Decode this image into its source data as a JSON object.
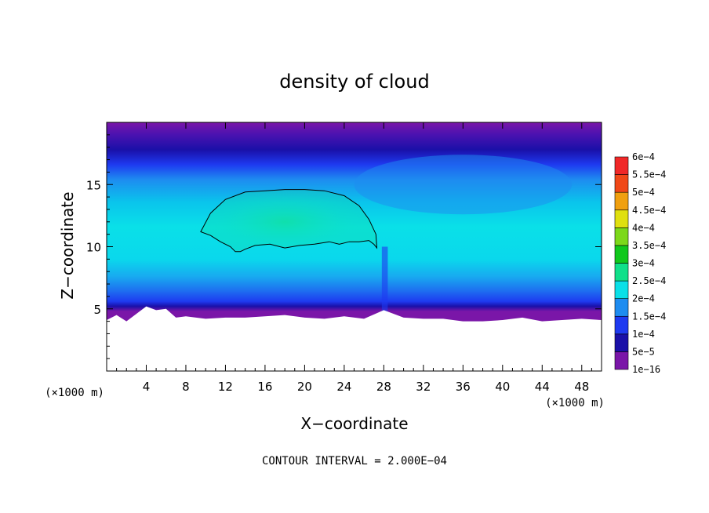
{
  "chart_data": {
    "type": "heatmap",
    "title": "density of cloud",
    "xlabel": "X−coordinate",
    "ylabel": "Z−coordinate",
    "x_unit_label": "(×1000 m)",
    "y_unit_label": "(×1000 m)",
    "footer": "CONTOUR INTERVAL = 2.000E−04",
    "xlim": [
      0,
      50
    ],
    "ylim": [
      0,
      20
    ],
    "x_ticks": [
      4,
      8,
      12,
      16,
      20,
      24,
      28,
      32,
      36,
      40,
      44,
      48
    ],
    "y_ticks": [
      5,
      10,
      15
    ],
    "legend_position": "right",
    "color_levels": [
      {
        "label": "1e−16",
        "color": "#7a16a8"
      },
      {
        "label": "5e−5",
        "color": "#1a10a8"
      },
      {
        "label": "1e−4",
        "color": "#1e3af0"
      },
      {
        "label": "1.5e−4",
        "color": "#1e8cf0"
      },
      {
        "label": "2e−4",
        "color": "#0ae0e8"
      },
      {
        "label": "2.5e−4",
        "color": "#10e08a"
      },
      {
        "label": "3e−4",
        "color": "#10c81c"
      },
      {
        "label": "3.5e−4",
        "color": "#7cd81a"
      },
      {
        "label": "4e−4",
        "color": "#e0e010"
      },
      {
        "label": "4.5e−4",
        "color": "#f0a010"
      },
      {
        "label": "5e−4",
        "color": "#f04818"
      },
      {
        "label": "5.5e−4",
        "color": "#f02828"
      },
      {
        "label": "6e−4",
        "color": "#f48c8c"
      }
    ],
    "contour_value": 0.0002,
    "contour_region": {
      "x": [
        9.5,
        10.5,
        12,
        14,
        16,
        18,
        20,
        22,
        24,
        25.5,
        26.5,
        27.2,
        27.3,
        27,
        26.5,
        25.5,
        24.5,
        23.5,
        22.5,
        21,
        19.5,
        18,
        16.5,
        15,
        14,
        13.5,
        13,
        12.5,
        11.5,
        10.5,
        9.5
      ],
      "z": [
        11.2,
        12.7,
        13.8,
        14.4,
        14.5,
        14.6,
        14.6,
        14.5,
        14.1,
        13.3,
        12.2,
        11,
        9.9,
        10.2,
        10.5,
        10.4,
        10.4,
        10.2,
        10.4,
        10.2,
        10.1,
        9.9,
        10.2,
        10.1,
        9.8,
        9.6,
        9.6,
        10,
        10.4,
        10.9,
        11.2
      ]
    }
  }
}
